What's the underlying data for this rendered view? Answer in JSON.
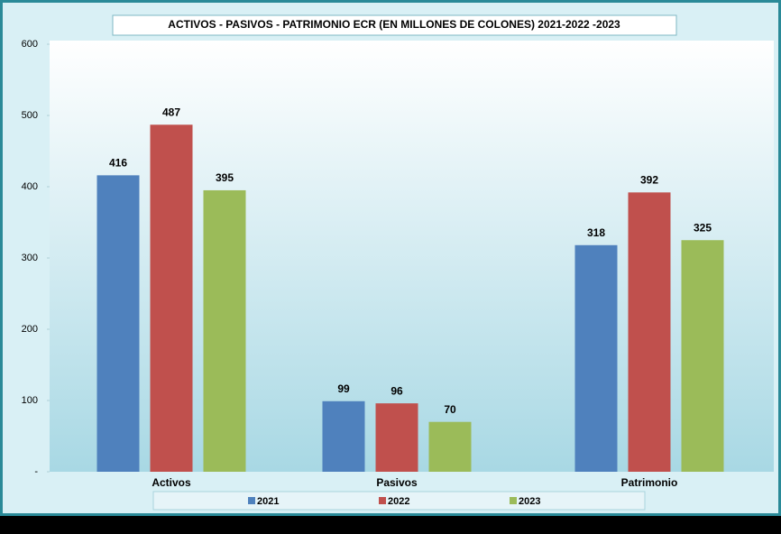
{
  "chart_data": {
    "type": "bar",
    "title": "ACTIVOS - PASIVOS - PATRIMONIO ECR (EN MILLONES DE COLONES) 2021-2022 -2023",
    "categories": [
      "Activos",
      "Pasivos",
      "Patrimonio"
    ],
    "series": [
      {
        "name": "2021",
        "color": "#4f81bd",
        "values": [
          416,
          99,
          318
        ]
      },
      {
        "name": "2022",
        "color": "#c0504d",
        "values": [
          487,
          96,
          392
        ]
      },
      {
        "name": "2023",
        "color": "#9bbb59",
        "values": [
          395,
          70,
          325
        ]
      }
    ],
    "ylim": [
      0,
      600
    ],
    "yticks": [
      {
        "value": 0,
        "label": "-"
      },
      100,
      200,
      300,
      400,
      500,
      600
    ],
    "legend": "bottom"
  }
}
